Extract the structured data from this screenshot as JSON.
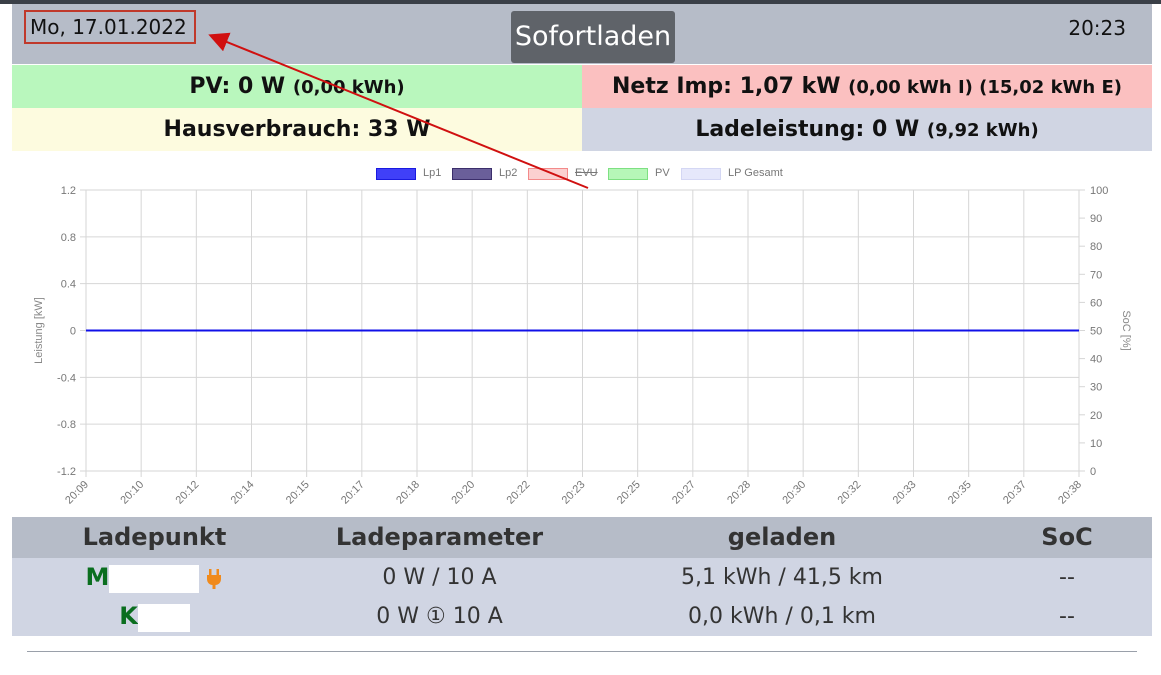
{
  "header": {
    "date": "Mo, 17.01.2022",
    "mode_button": "Sofortladen",
    "time": "20:23"
  },
  "summary": {
    "pv_label": "PV: 0 W",
    "pv_detail": "(0,00 kWh)",
    "netz_label": "Netz Imp: 1,07 kW",
    "netz_detail": "(0,00 kWh I) (15,02 kWh E)",
    "haus_label": "Hausverbrauch: 33 W",
    "lade_label": "Ladeleistung: 0 W",
    "lade_detail": "(9,92 kWh)"
  },
  "colors": {
    "pv_bg": "#b9f7bd",
    "netz_bg": "#fbc0c0",
    "haus_bg": "#fdfbdf",
    "lade_bg": "#d0d5e3",
    "header_bg": "#b6bcc8",
    "lp1": "#1010e8",
    "lp2": "#3b2e6b",
    "evu": "#f5a0a0",
    "pv": "#9ef0a0",
    "lp_gesamt": "#e4e6fb",
    "annotation": "#d01010"
  },
  "legend": {
    "items": [
      {
        "label": "Lp1",
        "fill": "#4040f8",
        "stroke": "#1a1ae0",
        "strike": false
      },
      {
        "label": "Lp2",
        "fill": "#6a5f9a",
        "stroke": "#3b2e6b",
        "strike": false
      },
      {
        "label": "EVU",
        "fill": "#fbd0d0",
        "stroke": "#f38a8a",
        "strike": true
      },
      {
        "label": "PV",
        "fill": "#b6f7b8",
        "stroke": "#7ee082",
        "strike": false
      },
      {
        "label": "LP Gesamt",
        "fill": "#e6e8fb",
        "stroke": "#d4d7f4",
        "strike": false
      }
    ]
  },
  "chart_data": {
    "type": "line",
    "ylabel": "Leistung [kW]",
    "y2label": "SoC [%]",
    "ylim": [
      -1.2,
      1.2
    ],
    "y_ticks": [
      "1.2",
      "0.8",
      "0.4",
      "0",
      "-0.4",
      "-0.8",
      "-1.2"
    ],
    "y2lim": [
      0,
      100
    ],
    "y2_ticks": [
      "100",
      "90",
      "80",
      "70",
      "60",
      "50",
      "40",
      "30",
      "20",
      "10",
      "0"
    ],
    "x": [
      "20:09",
      "20:10",
      "20:12",
      "20:14",
      "20:15",
      "20:17",
      "20:18",
      "20:20",
      "20:22",
      "20:23",
      "20:25",
      "20:27",
      "20:28",
      "20:30",
      "20:32",
      "20:33",
      "20:35",
      "20:37",
      "20:38"
    ],
    "series": [
      {
        "name": "Lp1",
        "values": [
          0,
          0,
          0,
          0,
          0,
          0,
          0,
          0,
          0,
          0,
          0,
          0,
          0,
          0,
          0,
          0,
          0,
          0,
          0
        ]
      }
    ],
    "grid": true,
    "legend_position": "top"
  },
  "table": {
    "headers": [
      "Ladepunkt",
      "Ladeparameter",
      "geladen",
      "SoC"
    ],
    "rows": [
      {
        "name": "M",
        "param": "0 W / 10 A",
        "geladen": "5,1 kWh / 41,5 km",
        "soc": "--",
        "icon": "plug-icon"
      },
      {
        "name": "K",
        "param": "0 W ① 10 A",
        "geladen": "0,0 kWh / 0,1 km",
        "soc": "--",
        "icon": ""
      }
    ]
  }
}
